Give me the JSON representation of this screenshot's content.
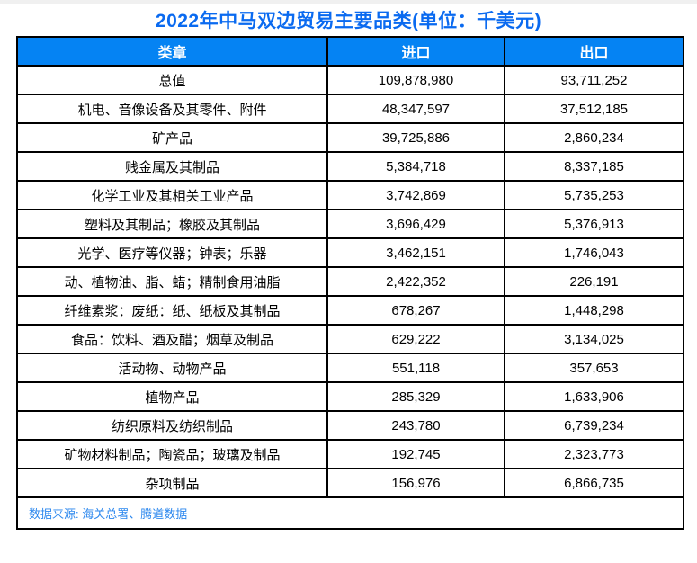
{
  "page": {
    "title": "2022年中马双边贸易主要品类(单位：千美元)"
  },
  "table": {
    "headers": [
      "类章",
      "进口",
      "出口"
    ],
    "rows": [
      {
        "category": "总值",
        "import": "109,878,980",
        "export": "93,711,252"
      },
      {
        "category": "机电、音像设备及其零件、附件",
        "import": "48,347,597",
        "export": "37,512,185"
      },
      {
        "category": "矿产品",
        "import": "39,725,886",
        "export": "2,860,234"
      },
      {
        "category": "贱金属及其制品",
        "import": "5,384,718",
        "export": "8,337,185"
      },
      {
        "category": "化学工业及其相关工业产品",
        "import": "3,742,869",
        "export": "5,735,253"
      },
      {
        "category": "塑料及其制品；橡胶及其制品",
        "import": "3,696,429",
        "export": "5,376,913"
      },
      {
        "category": "光学、医疗等仪器；钟表；乐器",
        "import": "3,462,151",
        "export": "1,746,043"
      },
      {
        "category": "动、植物油、脂、蜡；精制食用油脂",
        "import": "2,422,352",
        "export": "226,191"
      },
      {
        "category": "纤维素浆：废纸：纸、纸板及其制品",
        "import": "678,267",
        "export": "1,448,298"
      },
      {
        "category": "食品：饮料、酒及醋；烟草及制品",
        "import": "629,222",
        "export": "3,134,025"
      },
      {
        "category": "活动物、动物产品",
        "import": "551,118",
        "export": "357,653"
      },
      {
        "category": "植物产品",
        "import": "285,329",
        "export": "1,633,906"
      },
      {
        "category": "纺织原料及纺织制品",
        "import": "243,780",
        "export": "6,739,234"
      },
      {
        "category": "矿物材料制品；陶瓷品；玻璃及制品",
        "import": "192,745",
        "export": "2,323,773"
      },
      {
        "category": "杂项制品",
        "import": "156,976",
        "export": "6,866,735"
      }
    ],
    "footer": "数据来源: 海关总署、腾道数据"
  },
  "colors": {
    "title_blue": "#0a6af0",
    "header_bg": "#0583f3",
    "header_text": "#ffffff",
    "cell_text": "#000000",
    "border": "#000000",
    "source_text": "#2b87ee",
    "top_strip": "#f0f0f0"
  },
  "chart_data": {
    "type": "table",
    "title": "2022年中马双边贸易主要品类(单位：千美元)",
    "unit": "千美元",
    "columns": [
      "类章",
      "进口",
      "出口"
    ],
    "rows": [
      [
        "总值",
        109878980,
        93711252
      ],
      [
        "机电、音像设备及其零件、附件",
        48347597,
        37512185
      ],
      [
        "矿产品",
        39725886,
        2860234
      ],
      [
        "贱金属及其制品",
        5384718,
        8337185
      ],
      [
        "化学工业及其相关工业产品",
        3742869,
        5735253
      ],
      [
        "塑料及其制品；橡胶及其制品",
        3696429,
        5376913
      ],
      [
        "光学、医疗等仪器；钟表；乐器",
        3462151,
        1746043
      ],
      [
        "动、植物油、脂、蜡；精制食用油脂",
        2422352,
        226191
      ],
      [
        "纤维素浆：废纸：纸、纸板及其制品",
        678267,
        1448298
      ],
      [
        "食品：饮料、酒及醋；烟草及制品",
        629222,
        3134025
      ],
      [
        "活动物、动物产品",
        551118,
        357653
      ],
      [
        "植物产品",
        285329,
        1633906
      ],
      [
        "纺织原料及纺织制品",
        243780,
        6739234
      ],
      [
        "矿物材料制品；陶瓷品；玻璃及制品",
        192745,
        2323773
      ],
      [
        "杂项制品",
        156976,
        6866735
      ]
    ],
    "source": "数据来源: 海关总署、腾道数据"
  }
}
